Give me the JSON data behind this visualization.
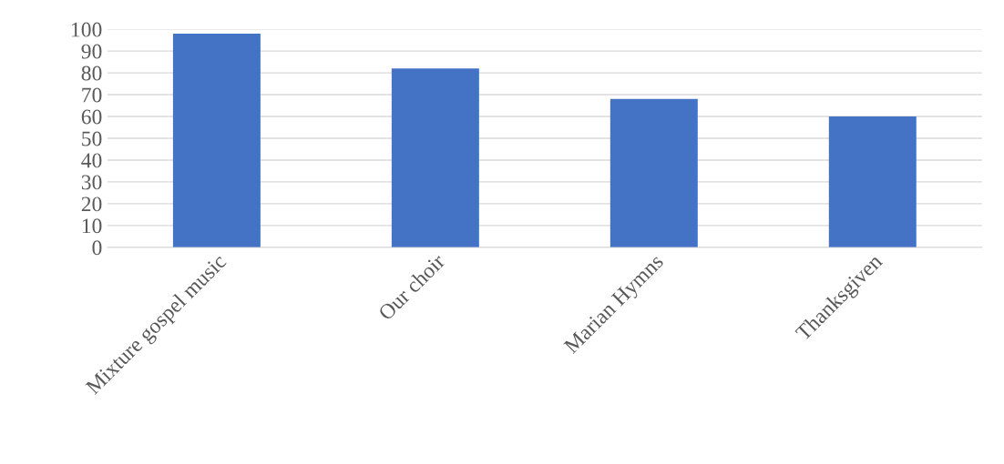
{
  "chart_data": {
    "type": "bar",
    "categories": [
      "Mixture gospel music",
      "Our choir",
      "Marian Hymns",
      "Thanksgiven"
    ],
    "values": [
      98,
      82,
      68,
      60
    ],
    "color": "#4472c4",
    "ylim": [
      0,
      100
    ],
    "yticks": [
      0,
      10,
      20,
      30,
      40,
      50,
      60,
      70,
      80,
      90,
      100
    ],
    "grid": "y",
    "legend": false
  }
}
